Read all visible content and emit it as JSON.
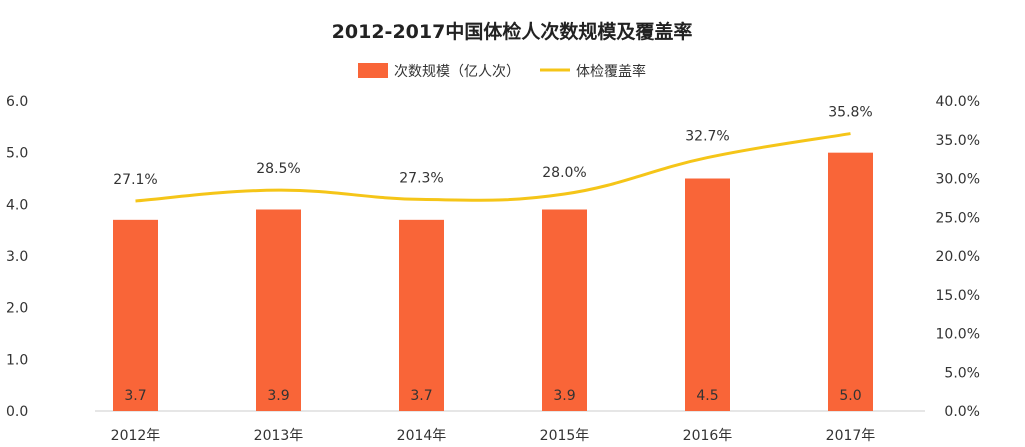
{
  "chart_data": {
    "type": "bar",
    "title": "2012-2017中国体检人次数规模及覆盖率",
    "categories": [
      "2012年",
      "2013年",
      "2014年",
      "2015年",
      "2016年",
      "2017年"
    ],
    "series": [
      {
        "name": "次数规模（亿人次）",
        "type": "bar",
        "axis": "left",
        "values": [
          3.7,
          3.9,
          3.7,
          3.9,
          4.5,
          5.0
        ],
        "labels": [
          "3.7",
          "3.9",
          "3.7",
          "3.9",
          "4.5",
          "5.0"
        ],
        "color": "#f96538"
      },
      {
        "name": "体检覆盖率",
        "type": "line",
        "axis": "right",
        "values": [
          27.1,
          28.5,
          27.3,
          28.0,
          32.7,
          35.8
        ],
        "labels": [
          "27.1%",
          "28.5%",
          "27.3%",
          "28.0%",
          "32.7%",
          "35.8%"
        ],
        "color": "#f5c518"
      }
    ],
    "y_left": {
      "range": [
        0,
        6
      ],
      "ticks": [
        0,
        1,
        2,
        3,
        4,
        5,
        6
      ],
      "tick_labels": [
        "0.0",
        "1.0",
        "2.0",
        "3.0",
        "4.0",
        "5.0",
        "6.0"
      ]
    },
    "y_right": {
      "range": [
        0,
        40
      ],
      "ticks": [
        0,
        5,
        10,
        15,
        20,
        25,
        30,
        35,
        40
      ],
      "tick_labels": [
        "0.0%",
        "5.0%",
        "10.0%",
        "15.0%",
        "20.0%",
        "25.0%",
        "30.0%",
        "35.0%",
        "40.0%"
      ]
    },
    "legend_position": "top-center",
    "grid": false
  }
}
